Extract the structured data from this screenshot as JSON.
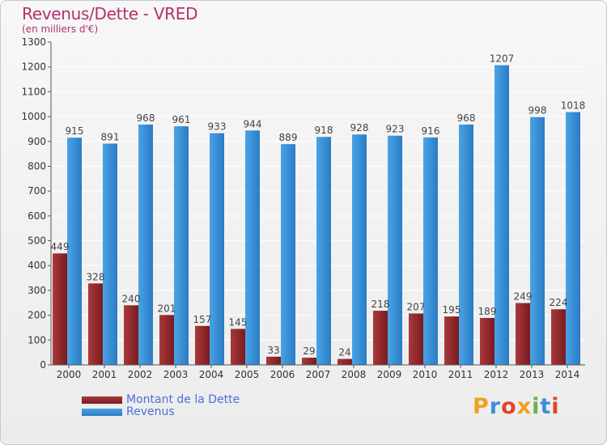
{
  "title": "Revenus/Dette - VRED",
  "subtitle": "(en milliers d'€)",
  "brand": "Proxiti",
  "colors": {
    "debt": "#7a1a1e",
    "debt_light": "#a83a3a",
    "revenue": "#4aa3e6",
    "revenue_dark": "#2a7cc4",
    "title": "#b3306b"
  },
  "chart_data": {
    "type": "bar",
    "categories": [
      "2000",
      "2001",
      "2002",
      "2003",
      "2004",
      "2005",
      "2006",
      "2007",
      "2008",
      "2009",
      "2010",
      "2011",
      "2012",
      "2013",
      "2014"
    ],
    "series": [
      {
        "name": "Montant de la Dette",
        "values": [
          449,
          328,
          240,
          201,
          157,
          145,
          33,
          29,
          24,
          218,
          207,
          195,
          189,
          249,
          224
        ]
      },
      {
        "name": "Revenus",
        "values": [
          915,
          891,
          968,
          961,
          933,
          944,
          889,
          918,
          928,
          923,
          916,
          968,
          1207,
          998,
          1018
        ]
      }
    ],
    "yticks": [
      0,
      100,
      200,
      300,
      400,
      500,
      600,
      700,
      800,
      900,
      1000,
      1100,
      1200,
      1300
    ],
    "ylim": [
      0,
      1300
    ],
    "grid": true,
    "legend_position": "bottom-left"
  }
}
